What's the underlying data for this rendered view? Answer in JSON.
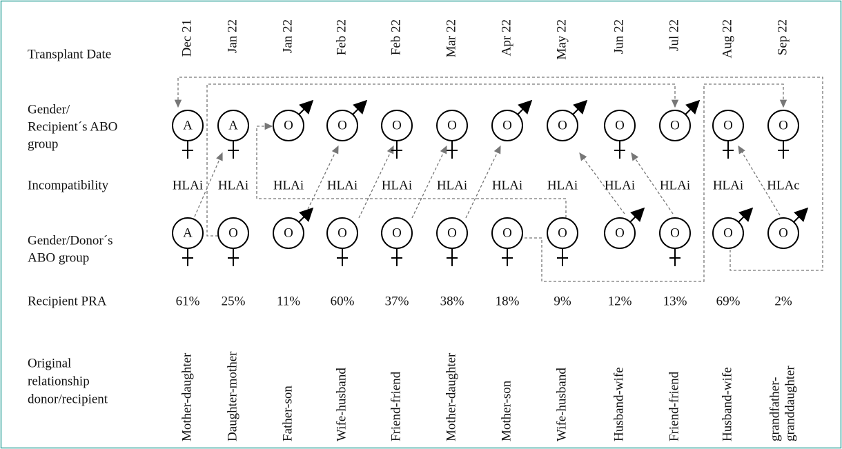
{
  "row_labels": [
    [
      "Transplant Date"
    ],
    [
      "Gender/",
      "Recipient´s ABO",
      "group"
    ],
    [
      "Incompatibility"
    ],
    [
      "Gender/Donor´s",
      "ABO group"
    ],
    [
      "Recipient PRA"
    ],
    [
      "Original",
      "relationship",
      "donor/recipient"
    ]
  ],
  "columns": [
    {
      "date": "Dec 21",
      "recipient_abo": "A",
      "incompatibility": "HLAi",
      "donor_abo": "A",
      "pra": "61%",
      "relationship": [
        "Mother-daughter"
      ]
    },
    {
      "date": "Jan 22",
      "recipient_abo": "A",
      "incompatibility": "HLAi",
      "donor_abo": "O",
      "pra": "25%",
      "relationship": [
        "Daughter-mother"
      ]
    },
    {
      "date": "Jan 22",
      "recipient_abo": "O",
      "incompatibility": "HLAi",
      "donor_abo": "O",
      "pra": "11%",
      "relationship": [
        "Father-son"
      ]
    },
    {
      "date": "Feb 22",
      "recipient_abo": "O",
      "incompatibility": "HLAi",
      "donor_abo": "O",
      "pra": "60%",
      "relationship": [
        "Wife-husband"
      ]
    },
    {
      "date": "Feb 22",
      "recipient_abo": "O",
      "incompatibility": "HLAi",
      "donor_abo": "O",
      "pra": "37%",
      "relationship": [
        "Friend-friend"
      ]
    },
    {
      "date": "Mar 22",
      "recipient_abo": "O",
      "incompatibility": "HLAi",
      "donor_abo": "O",
      "pra": "38%",
      "relationship": [
        "Mother-daughter"
      ]
    },
    {
      "date": "Apr 22",
      "recipient_abo": "O",
      "incompatibility": "HLAi",
      "donor_abo": "O",
      "pra": "18%",
      "relationship": [
        "Mother-son"
      ]
    },
    {
      "date": "May 22",
      "recipient_abo": "O",
      "incompatibility": "HLAi",
      "donor_abo": "O",
      "pra": "9%",
      "relationship": [
        "Wife-husband"
      ]
    },
    {
      "date": "Jun 22",
      "recipient_abo": "O",
      "incompatibility": "HLAi",
      "donor_abo": "O",
      "pra": "12%",
      "relationship": [
        "Husband-wife"
      ]
    },
    {
      "date": "Jul 22",
      "recipient_abo": "O",
      "incompatibility": "HLAi",
      "donor_abo": "O",
      "pra": "13%",
      "relationship": [
        "Friend-friend"
      ]
    },
    {
      "date": "Aug 22",
      "recipient_abo": "O",
      "incompatibility": "HLAi",
      "donor_abo": "O",
      "pra": "69%",
      "relationship": [
        "Husband-wife"
      ]
    },
    {
      "date": "Sep 22",
      "recipient_abo": "O",
      "incompatibility": "HLAc",
      "donor_abo": "O",
      "pra": "2%",
      "relationship": [
        "grandfather-",
        "granddaughter"
      ]
    }
  ]
}
